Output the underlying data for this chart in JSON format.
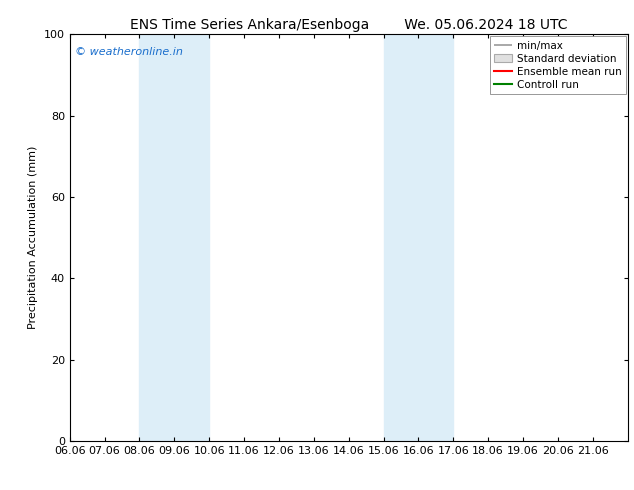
{
  "title_left": "ENS Time Series Ankara/Esenboga",
  "title_right": "We. 05.06.2024 18 UTC",
  "ylabel": "Precipitation Accumulation (mm)",
  "ylim": [
    0,
    100
  ],
  "yticks": [
    0,
    20,
    40,
    60,
    80,
    100
  ],
  "xlim": [
    0,
    16
  ],
  "xtick_labels": [
    "06.06",
    "07.06",
    "08.06",
    "09.06",
    "10.06",
    "11.06",
    "12.06",
    "13.06",
    "14.06",
    "15.06",
    "16.06",
    "17.06",
    "18.06",
    "19.06",
    "20.06",
    "21.06"
  ],
  "xtick_positions": [
    0,
    1,
    2,
    3,
    4,
    5,
    6,
    7,
    8,
    9,
    10,
    11,
    12,
    13,
    14,
    15
  ],
  "shaded_bands": [
    {
      "xmin": 2,
      "xmax": 4,
      "color": "#ddeef8"
    },
    {
      "xmin": 9,
      "xmax": 11,
      "color": "#ddeef8"
    }
  ],
  "watermark_text": "© weatheronline.in",
  "watermark_color": "#1a6ecc",
  "background_color": "#ffffff",
  "plot_bg_color": "#ffffff",
  "legend_labels": [
    "min/max",
    "Standard deviation",
    "Ensemble mean run",
    "Controll run"
  ],
  "legend_colors_line": [
    "#999999",
    "#cccccc",
    "#ff0000",
    "#008000"
  ],
  "font_size_title": 10,
  "font_size_axis": 8,
  "font_size_watermark": 8,
  "font_size_legend": 7.5
}
